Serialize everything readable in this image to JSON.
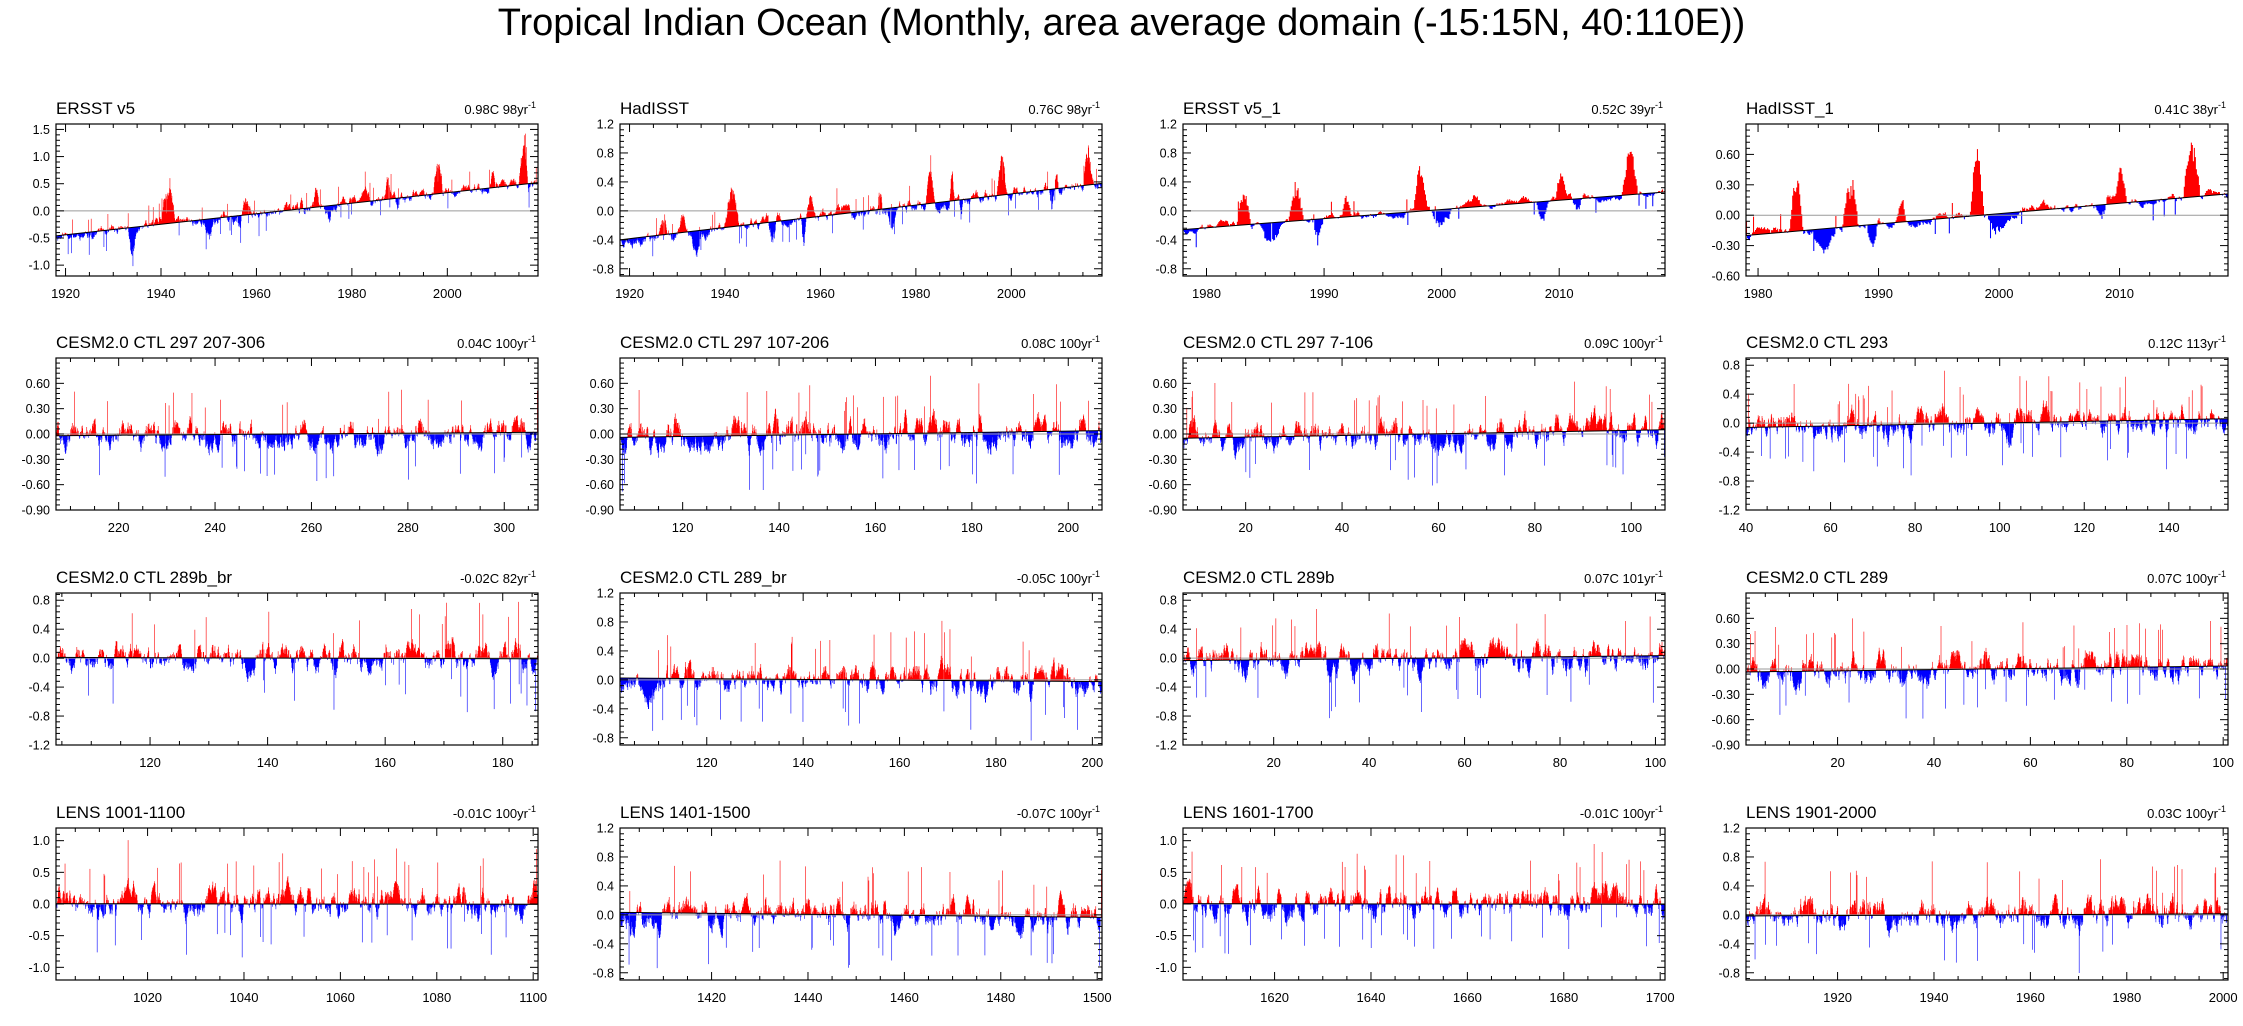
{
  "title": "Tropical Indian Ocean (Monthly, area average domain (-15:15N, 40:110E))",
  "colors": {
    "positive": "#ff0000",
    "negative": "#0000ff",
    "trend": "#000000",
    "frame": "#000000"
  },
  "chart_data": [
    {
      "type": "bar",
      "subtype": "monthly anomaly with linear trend",
      "title": "ERSST v5",
      "trend_label": "0.98C 98yr",
      "trend_sup": "-1",
      "xlim": [
        1918,
        2019
      ],
      "xticks": [
        1920,
        1940,
        1960,
        1980,
        2000
      ],
      "ylim": [
        -1.2,
        1.6
      ],
      "yticks": [
        -1.0,
        -0.5,
        0.0,
        0.5,
        1.0,
        1.5
      ],
      "yticklabels": [
        "-1.0",
        "-0.5",
        "0.0",
        "0.5",
        "1.0",
        "1.5"
      ],
      "trend": [
        -0.46,
        0.52
      ],
      "events": [
        [
          1940,
          1943,
          0.6
        ],
        [
          1957,
          1959,
          0.3
        ],
        [
          1969,
          1970,
          0.3
        ],
        [
          1972,
          1973,
          0.3
        ],
        [
          1982,
          1984,
          0.35
        ],
        [
          1987,
          1988,
          0.4
        ],
        [
          1997,
          1999,
          0.5
        ],
        [
          2009,
          2010,
          0.3
        ],
        [
          2015,
          2017,
          0.7
        ]
      ],
      "dips": [
        [
          1933,
          1935,
          -0.5
        ],
        [
          1949,
          1951,
          -0.35
        ],
        [
          1956,
          1957,
          -0.35
        ],
        [
          1974,
          1976,
          -0.3
        ],
        [
          1989,
          1990,
          -0.25
        ],
        [
          2008,
          2009,
          -0.25
        ]
      ],
      "noise": 0.14,
      "seed": 11
    },
    {
      "type": "bar",
      "subtype": "monthly anomaly with linear trend",
      "title": "HadISST",
      "trend_label": "0.76C 98yr",
      "trend_sup": "-1",
      "xlim": [
        1918,
        2019
      ],
      "xticks": [
        1920,
        1940,
        1960,
        1980,
        2000
      ],
      "ylim": [
        -0.9,
        1.2
      ],
      "yticks": [
        -0.8,
        -0.4,
        0.0,
        0.4,
        0.8,
        1.2
      ],
      "yticklabels": [
        "-0.8",
        "-0.4",
        "0.0",
        "0.4",
        "0.8",
        "1.2"
      ],
      "trend": [
        -0.4,
        0.38
      ],
      "events": [
        [
          1926,
          1928,
          0.3
        ],
        [
          1930,
          1932,
          0.3
        ],
        [
          1940,
          1943,
          0.5
        ],
        [
          1957,
          1959,
          0.3
        ],
        [
          1972,
          1973,
          0.3
        ],
        [
          1982,
          1984,
          0.4
        ],
        [
          1987,
          1988,
          0.45
        ],
        [
          1997,
          1999,
          0.6
        ],
        [
          2009,
          2010,
          0.3
        ],
        [
          2015,
          2017,
          0.6
        ]
      ],
      "dips": [
        [
          1933,
          1935,
          -0.3
        ],
        [
          1949,
          1951,
          -0.35
        ],
        [
          1956,
          1957,
          -0.35
        ],
        [
          1974,
          1976,
          -0.35
        ],
        [
          1989,
          1990,
          -0.3
        ],
        [
          2008,
          2009,
          -0.3
        ]
      ],
      "noise": 0.11,
      "seed": 23
    },
    {
      "type": "bar",
      "subtype": "monthly anomaly with linear trend",
      "title": "ERSST v5_1",
      "trend_label": "0.52C 39yr",
      "trend_sup": "-1",
      "xlim": [
        1978,
        2019
      ],
      "xticks": [
        1980,
        1990,
        2000,
        2010
      ],
      "ylim": [
        -0.9,
        1.2
      ],
      "yticks": [
        -0.8,
        -0.4,
        0.0,
        0.4,
        0.8,
        1.2
      ],
      "yticklabels": [
        "-0.8",
        "-0.4",
        "0.0",
        "0.4",
        "0.8",
        "1.2"
      ],
      "trend": [
        -0.26,
        0.26
      ],
      "events": [
        [
          1982.6,
          1983.8,
          0.45
        ],
        [
          1987,
          1988.3,
          0.45
        ],
        [
          1991.5,
          1992.3,
          0.25
        ],
        [
          1997.6,
          1998.8,
          0.65
        ],
        [
          2002.5,
          2003.3,
          0.2
        ],
        [
          2009.7,
          2010.6,
          0.3
        ],
        [
          2015.3,
          2016.7,
          0.7
        ]
      ],
      "dips": [
        [
          1984.5,
          1986.5,
          -0.3
        ],
        [
          1989,
          1990,
          -0.25
        ],
        [
          1999,
          2001,
          -0.3
        ],
        [
          2008,
          2009,
          -0.3
        ],
        [
          2011,
          2012,
          -0.25
        ]
      ],
      "noise": 0.08,
      "seed": 37
    },
    {
      "type": "bar",
      "subtype": "monthly anomaly with linear trend",
      "title": "HadISST_1",
      "trend_label": "0.41C 38yr",
      "trend_sup": "-1",
      "xlim": [
        1979,
        2019
      ],
      "xticks": [
        1980,
        1990,
        2000,
        2010
      ],
      "ylim": [
        -0.6,
        0.9
      ],
      "yticks": [
        -0.6,
        -0.3,
        0.0,
        0.3,
        0.6
      ],
      "yticklabels": [
        "-0.60",
        "-0.30",
        "0.00",
        "0.30",
        "0.60"
      ],
      "trend": [
        -0.2,
        0.21
      ],
      "events": [
        [
          1982.6,
          1983.8,
          0.55
        ],
        [
          1987,
          1988.3,
          0.55
        ],
        [
          1991.5,
          1992.3,
          0.2
        ],
        [
          1997.6,
          1998.8,
          0.7
        ],
        [
          2009.7,
          2010.6,
          0.3
        ],
        [
          2015.3,
          2016.7,
          0.55
        ]
      ],
      "dips": [
        [
          1984.5,
          1986.5,
          -0.22
        ],
        [
          1989,
          1990,
          -0.25
        ],
        [
          1999,
          2001,
          -0.22
        ],
        [
          2008,
          2009,
          -0.2
        ]
      ],
      "noise": 0.07,
      "seed": 41
    },
    {
      "type": "bar",
      "subtype": "monthly anomaly with linear trend",
      "title": "CESM2.0 CTL 297 207-306",
      "trend_label": "0.04C 100yr",
      "trend_sup": "-1",
      "xlim": [
        207,
        307
      ],
      "xticks": [
        220,
        240,
        260,
        280,
        300
      ],
      "ylim": [
        -0.9,
        0.9
      ],
      "yticks": [
        -0.9,
        -0.6,
        -0.3,
        0.0,
        0.3,
        0.6
      ],
      "yticklabels": [
        "-0.90",
        "-0.60",
        "-0.30",
        "0.00",
        "0.30",
        "0.60"
      ],
      "trend": [
        -0.02,
        0.02
      ],
      "events": [],
      "dips": [],
      "noise": 0.2,
      "seed": 101
    },
    {
      "type": "bar",
      "subtype": "monthly anomaly with linear trend",
      "title": "CESM2.0 CTL 297 107-206",
      "trend_label": "0.08C 100yr",
      "trend_sup": "-1",
      "xlim": [
        107,
        207
      ],
      "xticks": [
        120,
        140,
        160,
        180,
        200
      ],
      "ylim": [
        -0.9,
        0.9
      ],
      "yticks": [
        -0.9,
        -0.6,
        -0.3,
        0.0,
        0.3,
        0.6
      ],
      "yticklabels": [
        "-0.90",
        "-0.60",
        "-0.30",
        "0.00",
        "0.30",
        "0.60"
      ],
      "trend": [
        -0.04,
        0.04
      ],
      "events": [],
      "dips": [],
      "noise": 0.22,
      "seed": 102
    },
    {
      "type": "bar",
      "subtype": "monthly anomaly with linear trend",
      "title": "CESM2.0 CTL 297 7-106",
      "trend_label": "0.09C 100yr",
      "trend_sup": "-1",
      "xlim": [
        7,
        107
      ],
      "xticks": [
        20,
        40,
        60,
        80,
        100
      ],
      "ylim": [
        -0.9,
        0.9
      ],
      "yticks": [
        -0.9,
        -0.6,
        -0.3,
        0.0,
        0.3,
        0.6
      ],
      "yticklabels": [
        "-0.90",
        "-0.60",
        "-0.30",
        "0.00",
        "0.30",
        "0.60"
      ],
      "trend": [
        -0.05,
        0.05
      ],
      "events": [],
      "dips": [],
      "noise": 0.2,
      "seed": 103
    },
    {
      "type": "bar",
      "subtype": "monthly anomaly with linear trend",
      "title": "CESM2.0 CTL 293",
      "trend_label": "0.12C 113yr",
      "trend_sup": "-1",
      "xlim": [
        40,
        154
      ],
      "xticks": [
        40,
        60,
        80,
        100,
        120,
        140
      ],
      "ylim": [
        -1.2,
        0.9
      ],
      "yticks": [
        -1.2,
        -0.8,
        -0.4,
        0.0,
        0.4,
        0.8
      ],
      "yticklabels": [
        "-1.2",
        "-0.8",
        "-0.4",
        "0.0",
        "0.4",
        "0.8"
      ],
      "trend": [
        -0.06,
        0.06
      ],
      "events": [],
      "dips": [],
      "noise": 0.22,
      "seed": 104
    },
    {
      "type": "bar",
      "subtype": "monthly anomaly with linear trend",
      "title": "CESM2.0 CTL 289b_br",
      "trend_label": "-0.02C 82yr",
      "trend_sup": "-1",
      "xlim": [
        104,
        186
      ],
      "xticks": [
        120,
        140,
        160,
        180
      ],
      "ylim": [
        -1.2,
        0.9
      ],
      "yticks": [
        -1.2,
        -0.8,
        -0.4,
        0.0,
        0.4,
        0.8
      ],
      "yticklabels": [
        "-1.2",
        "-0.8",
        "-0.4",
        "0.0",
        "0.4",
        "0.8"
      ],
      "trend": [
        0.01,
        -0.01
      ],
      "events": [],
      "dips": [],
      "noise": 0.24,
      "seed": 105
    },
    {
      "type": "bar",
      "subtype": "monthly anomaly with linear trend",
      "title": "CESM2.0 CTL 289_br",
      "trend_label": "-0.05C 100yr",
      "trend_sup": "-1",
      "xlim": [
        102,
        202
      ],
      "xticks": [
        120,
        140,
        160,
        180,
        200
      ],
      "ylim": [
        -0.9,
        1.2
      ],
      "yticks": [
        -0.8,
        -0.4,
        0.0,
        0.4,
        0.8,
        1.2
      ],
      "yticklabels": [
        "-0.8",
        "-0.4",
        "0.0",
        "0.4",
        "0.8",
        "1.2"
      ],
      "trend": [
        0.025,
        -0.025
      ],
      "events": [],
      "dips": [],
      "noise": 0.24,
      "seed": 106
    },
    {
      "type": "bar",
      "subtype": "monthly anomaly with linear trend",
      "title": "CESM2.0 CTL 289b",
      "trend_label": "0.07C 101yr",
      "trend_sup": "-1",
      "xlim": [
        1,
        102
      ],
      "xticks": [
        20,
        40,
        60,
        80,
        100
      ],
      "ylim": [
        -1.2,
        0.9
      ],
      "yticks": [
        -1.2,
        -0.8,
        -0.4,
        0.0,
        0.4,
        0.8
      ],
      "yticklabels": [
        "-1.2",
        "-0.8",
        "-0.4",
        "0.0",
        "0.4",
        "0.8"
      ],
      "trend": [
        -0.035,
        0.035
      ],
      "events": [],
      "dips": [],
      "noise": 0.24,
      "seed": 107
    },
    {
      "type": "bar",
      "subtype": "monthly anomaly with linear trend",
      "title": "CESM2.0 CTL 289",
      "trend_label": "0.07C 100yr",
      "trend_sup": "-1",
      "xlim": [
        1,
        101
      ],
      "xticks": [
        20,
        40,
        60,
        80,
        100
      ],
      "ylim": [
        -0.9,
        0.9
      ],
      "yticks": [
        -0.9,
        -0.6,
        -0.3,
        0.0,
        0.3,
        0.6
      ],
      "yticklabels": [
        "-0.90",
        "-0.60",
        "-0.30",
        "0.00",
        "0.30",
        "0.60"
      ],
      "trend": [
        -0.035,
        0.035
      ],
      "events": [],
      "dips": [],
      "noise": 0.2,
      "seed": 108
    },
    {
      "type": "bar",
      "subtype": "monthly anomaly with linear trend",
      "title": "LENS 1001-1100",
      "trend_label": "-0.01C 100yr",
      "trend_sup": "-1",
      "xlim": [
        1001,
        1101
      ],
      "xticks": [
        1020,
        1040,
        1060,
        1080,
        1100
      ],
      "ylim": [
        -1.2,
        1.2
      ],
      "yticks": [
        -1.0,
        -0.5,
        0.0,
        0.5,
        1.0
      ],
      "yticklabels": [
        "-1.0",
        "-0.5",
        "0.0",
        "0.5",
        "1.0"
      ],
      "trend": [
        0.005,
        -0.005
      ],
      "events": [],
      "dips": [],
      "noise": 0.27,
      "seed": 201
    },
    {
      "type": "bar",
      "subtype": "monthly anomaly with linear trend",
      "title": "LENS 1401-1500",
      "trend_label": "-0.07C 100yr",
      "trend_sup": "-1",
      "xlim": [
        1401,
        1501
      ],
      "xticks": [
        1420,
        1440,
        1460,
        1480,
        1500
      ],
      "ylim": [
        -0.9,
        1.2
      ],
      "yticks": [
        -0.8,
        -0.4,
        0.0,
        0.4,
        0.8,
        1.2
      ],
      "yticklabels": [
        "-0.8",
        "-0.4",
        "0.0",
        "0.4",
        "0.8",
        "1.2"
      ],
      "trend": [
        0.035,
        -0.035
      ],
      "events": [],
      "dips": [],
      "noise": 0.25,
      "seed": 202
    },
    {
      "type": "bar",
      "subtype": "monthly anomaly with linear trend",
      "title": "LENS 1601-1700",
      "trend_label": "-0.01C 100yr",
      "trend_sup": "-1",
      "xlim": [
        1601,
        1701
      ],
      "xticks": [
        1620,
        1640,
        1660,
        1680,
        1700
      ],
      "ylim": [
        -1.2,
        1.2
      ],
      "yticks": [
        -1.0,
        -0.5,
        0.0,
        0.5,
        1.0
      ],
      "yticklabels": [
        "-1.0",
        "-0.5",
        "0.0",
        "0.5",
        "1.0"
      ],
      "trend": [
        0.005,
        -0.005
      ],
      "events": [],
      "dips": [],
      "noise": 0.27,
      "seed": 203
    },
    {
      "type": "bar",
      "subtype": "monthly anomaly with linear trend",
      "title": "LENS 1901-2000",
      "trend_label": "0.03C 100yr",
      "trend_sup": "-1",
      "xlim": [
        1901,
        2001
      ],
      "xticks": [
        1920,
        1940,
        1960,
        1980,
        2000
      ],
      "ylim": [
        -0.9,
        1.2
      ],
      "yticks": [
        -0.8,
        -0.4,
        0.0,
        0.4,
        0.8,
        1.2
      ],
      "yticklabels": [
        "-0.8",
        "-0.4",
        "0.0",
        "0.4",
        "0.8",
        "1.2"
      ],
      "trend": [
        -0.015,
        0.015
      ],
      "events": [],
      "dips": [],
      "noise": 0.25,
      "seed": 204
    }
  ]
}
